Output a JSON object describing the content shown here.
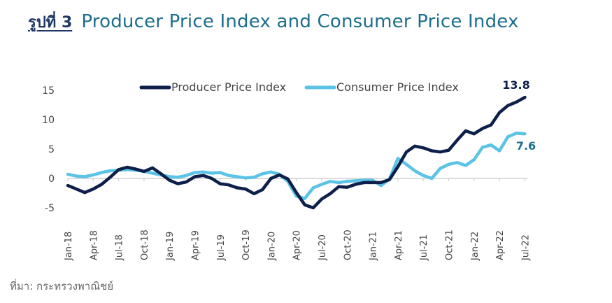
{
  "figure": {
    "label": "รูปที่ 3",
    "title": "Producer Price Index and Consumer Price Index"
  },
  "source": "ที่มา: กระทรวงพาณิชย์",
  "colors": {
    "ppi": "#0d1f4a",
    "cpi": "#5bc3e6",
    "axis": "#d0d0d0"
  },
  "chart_data": {
    "type": "line",
    "title": "Producer Price Index and Consumer Price Index",
    "xlabel": "",
    "ylabel": "",
    "ylim": [
      -5,
      15
    ],
    "yticks": [
      15,
      10,
      5,
      0,
      -5
    ],
    "x": [
      "Jan-18",
      "Feb-18",
      "Mar-18",
      "Apr-18",
      "May-18",
      "Jun-18",
      "Jul-18",
      "Aug-18",
      "Sep-18",
      "Oct-18",
      "Nov-18",
      "Dec-18",
      "Jan-19",
      "Feb-19",
      "Mar-19",
      "Apr-19",
      "May-19",
      "Jun-19",
      "Jul-19",
      "Aug-19",
      "Sep-19",
      "Oct-19",
      "Nov-19",
      "Dec-19",
      "Jan-20",
      "Feb-20",
      "Mar-20",
      "Apr-20",
      "May-20",
      "Jun-20",
      "Jul-20",
      "Aug-20",
      "Sep-20",
      "Oct-20",
      "Nov-20",
      "Dec-20",
      "Jan-21",
      "Feb-21",
      "Mar-21",
      "Apr-21",
      "May-21",
      "Jun-21",
      "Jul-21",
      "Aug-21",
      "Sep-21",
      "Oct-21",
      "Nov-21",
      "Dec-21",
      "Jan-22",
      "Feb-22",
      "Mar-22",
      "Apr-22",
      "May-22",
      "Jun-22",
      "Jul-22"
    ],
    "xtick_labels": [
      "Jan-18",
      "Apr-18",
      "Jul-18",
      "Oct-18",
      "Jan-19",
      "Apr-19",
      "Jul-19",
      "Oct-19",
      "Jan-20",
      "Apr-20",
      "Jul-20",
      "Oct-20",
      "Jan-21",
      "Apr-21",
      "Jul-21",
      "Oct-21",
      "Jan-22",
      "Apr-22",
      "Jul-22"
    ],
    "series": [
      {
        "name": "Producer Price Index",
        "color": "#0d1f4a",
        "end_label": "13.8",
        "values": [
          -1.2,
          -1.8,
          -2.4,
          -1.8,
          -1.0,
          0.2,
          1.5,
          1.9,
          1.6,
          1.2,
          1.8,
          0.8,
          -0.3,
          -0.9,
          -0.6,
          0.3,
          0.5,
          0.0,
          -0.9,
          -1.1,
          -1.6,
          -1.8,
          -2.6,
          -1.9,
          0.0,
          0.6,
          -0.1,
          -2.4,
          -4.5,
          -5.0,
          -3.5,
          -2.6,
          -1.4,
          -1.5,
          -1.0,
          -0.7,
          -0.7,
          -0.7,
          -0.2,
          2.0,
          4.5,
          5.5,
          5.2,
          4.7,
          4.5,
          4.8,
          6.5,
          8.1,
          7.6,
          8.5,
          9.1,
          11.2,
          12.4,
          13.0,
          13.8
        ]
      },
      {
        "name": "Consumer Price Index",
        "color": "#5bc3e6",
        "end_label": "7.6",
        "values": [
          0.7,
          0.4,
          0.3,
          0.6,
          1.0,
          1.3,
          1.4,
          1.5,
          1.4,
          1.2,
          0.9,
          0.6,
          0.3,
          0.2,
          0.5,
          1.0,
          1.1,
          0.9,
          1.0,
          0.5,
          0.3,
          0.1,
          0.2,
          0.8,
          1.1,
          0.7,
          -0.5,
          -3.0,
          -3.4,
          -1.6,
          -1.0,
          -0.5,
          -0.7,
          -0.5,
          -0.4,
          -0.3,
          -0.3,
          -1.2,
          -0.1,
          3.4,
          2.4,
          1.3,
          0.5,
          0.0,
          1.7,
          2.4,
          2.7,
          2.2,
          3.2,
          5.3,
          5.7,
          4.7,
          7.1,
          7.7,
          7.6
        ]
      }
    ],
    "legend": "top-center",
    "grid": false
  }
}
